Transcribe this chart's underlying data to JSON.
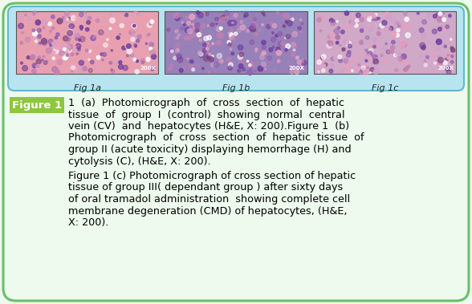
{
  "bg_color": "#edfaed",
  "border_color": "#6abf6a",
  "image_panel_bg_top": "#a8dce8",
  "image_panel_bg_bot": "#c8eef8",
  "image_labels": [
    "Fig 1a",
    "Fig 1b",
    "Fig 1c"
  ],
  "figure_label": "Figure 1",
  "figure_label_bg": "#8dc63f",
  "figure_label_color": "#ffffff",
  "para1_lines": [
    "1  (a)  Photomicrograph  of  cross  section  of  hepatic",
    "tissue  of  group  I  (control)  showing  normal  central",
    "vein (CV)  and  hepatocytes (H&E, X: 200).Figure 1  (b)",
    "Photomicrograph  of  cross  section  of  hepatic  tissue  of",
    "group II (acute toxicity) displaying hemorrhage (H) and",
    "cytolysis (C), (H&E, X: 200)."
  ],
  "para2_lines": [
    "Figure 1 (c) Photomicrograph of cross section of hepatic",
    "tissue of group III( dependant group ) after sixty days",
    "of oral tramadol administration  showing complete cell",
    "membrane degeneration (CMD) of hepatocytes, (H&E,",
    "X: 200)."
  ],
  "text_color": "#000000",
  "caption_fontsize": 9.2,
  "img1_base": "#e8a0b0",
  "img2_base": "#9880b8",
  "img3_base": "#d0a8c8"
}
